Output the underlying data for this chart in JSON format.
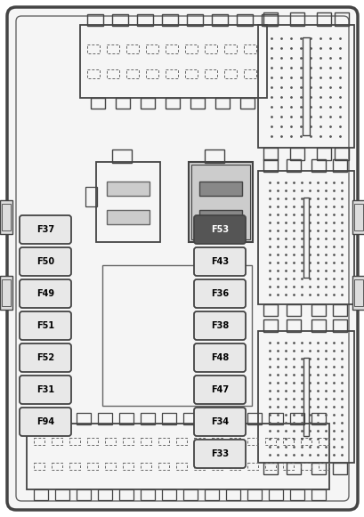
{
  "bg_color": "#ffffff",
  "border_color": "#444444",
  "line_color": "#666666",
  "fuse_fill_light": "#e8e8e8",
  "fuse_fill_dark": "#555555",
  "fuse_text_light": "#000000",
  "fuse_text_dark": "#ffffff",
  "fuses_left": [
    "F37",
    "F50",
    "F49",
    "F51",
    "F52",
    "F31",
    "F94"
  ],
  "fuses_right": [
    "F53",
    "F43",
    "F36",
    "F38",
    "F48",
    "F47",
    "F34",
    "F33"
  ],
  "dot_color": "#555555",
  "relay_fill": "#cccccc",
  "relay_dark_fill": "#888888"
}
